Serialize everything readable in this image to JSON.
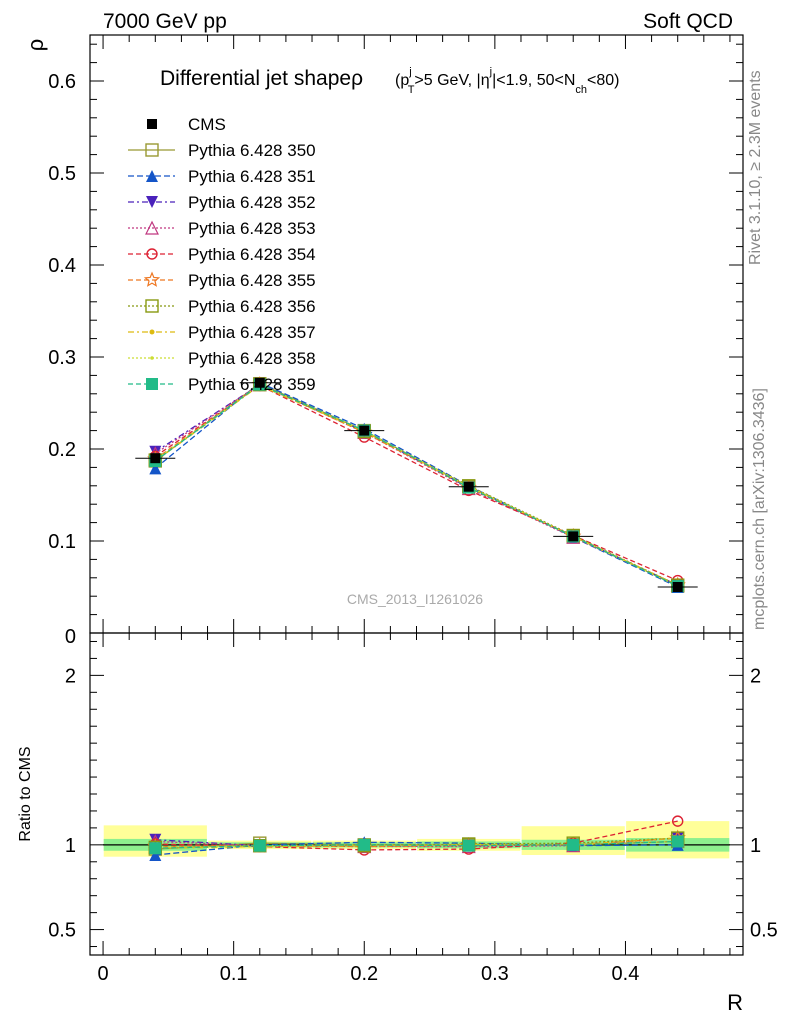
{
  "header": {
    "left": "7000 GeV pp",
    "right": "Soft QCD"
  },
  "side_labels": {
    "rivet": "Rivet 3.1.10, ≥ 2.3M events",
    "mcplots": "mcplots.cern.ch [arXiv:1306.3436]"
  },
  "watermark": "CMS_2013_I1261026",
  "chart_data": [
    {
      "type": "line",
      "title_main": "Differential jet shape",
      "title_rho": "ρ",
      "title_cuts": {
        "open": "(p",
        "pt_sup": "j",
        "pt_sub": "T",
        "pt_cut": ">5 GeV, |η",
        "eta_sup": "j",
        "eta_cut": "|<1.9, 50<N",
        "nch_sub": "ch",
        "close": "<80)"
      },
      "ylabel": "ρ",
      "xlabel": "R",
      "xlim": [
        -0.01,
        0.49
      ],
      "ylim": [
        0,
        0.65
      ],
      "xticks": [
        0,
        0.1,
        0.2,
        0.3,
        0.4
      ],
      "xtick_labels": [
        "0",
        "0.1",
        "0.2",
        "0.3",
        "0.4"
      ],
      "yticks": [
        0.1,
        0.2,
        0.3,
        0.4,
        0.5,
        0.6
      ],
      "ytick_labels": [
        "0.1",
        "0.2",
        "0.3",
        "0.4",
        "0.5",
        "0.6"
      ],
      "ybottom_label": "0",
      "legend_position": "top-left",
      "x": [
        0.04,
        0.12,
        0.2,
        0.28,
        0.36,
        0.44
      ],
      "data": {
        "name": "CMS",
        "values": [
          0.19,
          0.272,
          0.22,
          0.159,
          0.105,
          0.05
        ]
      },
      "series": [
        {
          "name": "Pythia 6.428 350",
          "color": "#999933",
          "dash": "",
          "marker": "square-open",
          "values": [
            0.187,
            0.271,
            0.22,
            0.159,
            0.105,
            0.051
          ]
        },
        {
          "name": "Pythia 6.428 351",
          "color": "#1455c8",
          "dash": "6,3",
          "marker": "triangle-up",
          "values": [
            0.179,
            0.272,
            0.222,
            0.16,
            0.104,
            0.05
          ]
        },
        {
          "name": "Pythia 6.428 352",
          "color": "#4a22bb",
          "dash": "6,3,2,3",
          "marker": "triangle-down",
          "values": [
            0.197,
            0.27,
            0.219,
            0.158,
            0.105,
            0.052
          ]
        },
        {
          "name": "Pythia 6.428 353",
          "color": "#c03880",
          "dash": "2,2",
          "marker": "triangle-up-open",
          "values": [
            0.195,
            0.27,
            0.218,
            0.157,
            0.104,
            0.052
          ]
        },
        {
          "name": "Pythia 6.428 354",
          "color": "#dd2233",
          "dash": "5,3",
          "marker": "circle-open",
          "values": [
            0.192,
            0.269,
            0.213,
            0.155,
            0.106,
            0.057
          ]
        },
        {
          "name": "Pythia 6.428 355",
          "color": "#ee7722",
          "dash": "5,3",
          "marker": "star-open",
          "values": [
            0.189,
            0.27,
            0.218,
            0.158,
            0.105,
            0.052
          ]
        },
        {
          "name": "Pythia 6.428 356",
          "color": "#889911",
          "dash": "2,2",
          "marker": "square-open",
          "values": [
            0.188,
            0.27,
            0.219,
            0.16,
            0.106,
            0.052
          ]
        },
        {
          "name": "Pythia 6.428 357",
          "color": "#ddbb11",
          "dash": "6,3,2,3",
          "marker": "dot",
          "values": [
            0.187,
            0.269,
            0.219,
            0.159,
            0.105,
            0.052
          ]
        },
        {
          "name": "Pythia 6.428 358",
          "color": "#ccdd33",
          "dash": "2,2",
          "marker": "dot-small",
          "values": [
            0.188,
            0.27,
            0.22,
            0.159,
            0.105,
            0.051
          ]
        },
        {
          "name": "Pythia 6.428 359",
          "color": "#22bb88",
          "dash": "5,3",
          "marker": "square",
          "values": [
            0.187,
            0.27,
            0.22,
            0.158,
            0.105,
            0.051
          ]
        }
      ]
    },
    {
      "type": "line",
      "ylabel": "Ratio to CMS",
      "xlabel": "R",
      "xlim": [
        -0.01,
        0.49
      ],
      "ylim": [
        0.35,
        2.25
      ],
      "yticks": [
        0.5,
        1,
        2
      ],
      "ytick_labels": [
        "0.5",
        "1",
        "2"
      ],
      "x": [
        0.04,
        0.12,
        0.2,
        0.28,
        0.36,
        0.44
      ],
      "bin_edges": [
        0,
        0.08,
        0.16,
        0.24,
        0.32,
        0.4,
        0.48
      ],
      "band_stat": [
        [
          0.965,
          1.035
        ],
        [
          0.985,
          1.015
        ],
        [
          0.985,
          1.015
        ],
        [
          0.98,
          1.02
        ],
        [
          0.97,
          1.03
        ],
        [
          0.96,
          1.04
        ]
      ],
      "band_total": [
        [
          0.93,
          1.115
        ],
        [
          0.975,
          1.025
        ],
        [
          0.975,
          1.025
        ],
        [
          0.965,
          1.035
        ],
        [
          0.94,
          1.11
        ],
        [
          0.92,
          1.14
        ]
      ],
      "series_ratio": [
        [
          0.975,
          1.01,
          1.0,
          1.0,
          1.0,
          1.02
        ],
        [
          0.94,
          1.0,
          1.015,
          1.01,
          0.995,
          1.0
        ],
        [
          1.03,
          0.995,
          0.995,
          0.995,
          1.0,
          1.04
        ],
        [
          1.02,
          0.995,
          0.99,
          0.99,
          0.995,
          1.04
        ],
        [
          1.005,
          0.99,
          0.97,
          0.975,
          1.01,
          1.14
        ],
        [
          0.99,
          0.995,
          0.99,
          0.995,
          1.0,
          1.04
        ],
        [
          0.985,
          0.995,
          0.995,
          1.005,
          1.01,
          1.04
        ],
        [
          0.98,
          0.99,
          0.995,
          1.0,
          1.0,
          1.04
        ],
        [
          0.985,
          0.995,
          1.0,
          1.0,
          1.0,
          1.02
        ],
        [
          0.98,
          0.995,
          1.0,
          0.995,
          1.0,
          1.02
        ]
      ]
    }
  ]
}
